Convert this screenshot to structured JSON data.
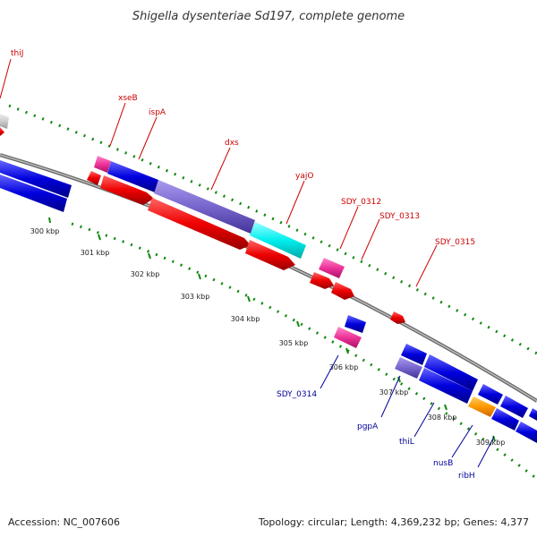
{
  "title": "Shigella dysenteriae Sd197, complete genome",
  "tick_labels": [
    "300 kbp",
    "301 kbp",
    "302 kbp",
    "303 kbp",
    "304 kbp",
    "305 kbp",
    "306 kbp",
    "307 kbp",
    "308 kbp",
    "309 kbp"
  ],
  "genes_top": [
    "thiJ",
    "xseB",
    "ispA",
    "dxs",
    "yajO",
    "SDY_0312",
    "SDY_0313",
    "SDY_0315"
  ],
  "genes_bottom": [
    "SDY_0314",
    "pgpA",
    "thiL",
    "nusB",
    "ribH"
  ],
  "colors": {
    "backbone": "#888888",
    "cds_forward": "#0000ee",
    "cds_reverse": "#ee0000",
    "pink": "#ee3399",
    "cyan": "#00eeee",
    "lavender": "#7766cc",
    "orange": "#ff9900",
    "gray": "#cccccc",
    "tick": "#118811",
    "label_red": "#cc0000",
    "label_blue": "#000099"
  },
  "footer": {
    "accession": "Accession: NC_007606",
    "summary": "Topology: circular; Length: 4,369,232 bp; Genes: 4,377"
  }
}
